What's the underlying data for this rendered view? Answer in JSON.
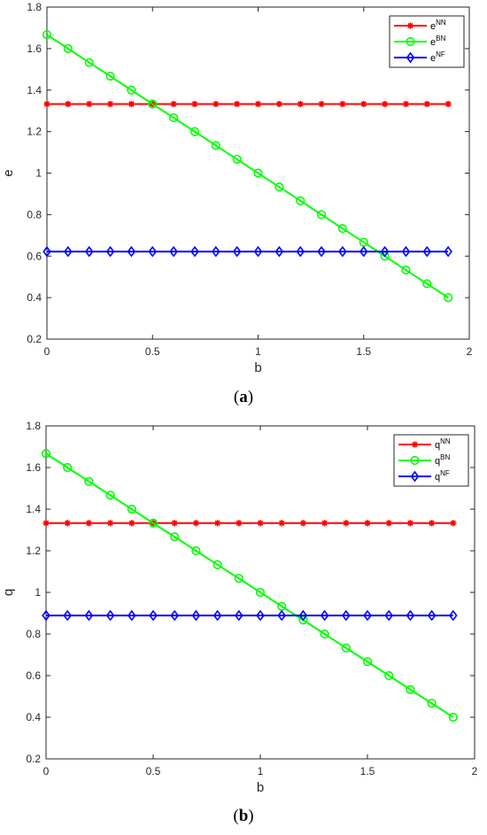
{
  "chart_data": [
    {
      "type": "line",
      "caption_prefix": "(",
      "caption_letter": "a",
      "caption_suffix": ")",
      "xlabel": "b",
      "ylabel": "e",
      "xlim": [
        0,
        2
      ],
      "ylim": [
        0.2,
        1.8
      ],
      "xticks": [
        0,
        0.5,
        1,
        1.5,
        2
      ],
      "xtick_labels": [
        "0",
        "0.5",
        "1",
        "1.5",
        "2"
      ],
      "yticks": [
        0.2,
        0.4,
        0.6,
        0.8,
        1,
        1.2,
        1.4,
        1.6,
        1.8
      ],
      "ytick_labels": [
        "0.2",
        "0.4",
        "0.6",
        "0.8",
        "1",
        "1.2",
        "1.4",
        "1.6",
        "1.8"
      ],
      "grid": false,
      "legend_position": "top-right",
      "x": [
        0,
        0.1,
        0.2,
        0.3,
        0.4,
        0.5,
        0.6,
        0.7,
        0.8,
        0.9,
        1.0,
        1.1,
        1.2,
        1.3,
        1.4,
        1.5,
        1.6,
        1.7,
        1.8,
        1.9
      ],
      "series": [
        {
          "base": "e",
          "sup": "NN",
          "color": "#ff0000",
          "marker": "star",
          "values": [
            1.333,
            1.333,
            1.333,
            1.333,
            1.333,
            1.333,
            1.333,
            1.333,
            1.333,
            1.333,
            1.333,
            1.333,
            1.333,
            1.333,
            1.333,
            1.333,
            1.333,
            1.333,
            1.333,
            1.333
          ]
        },
        {
          "base": "e",
          "sup": "BN",
          "color": "#00ff00",
          "marker": "circle",
          "values": [
            1.667,
            1.6,
            1.533,
            1.467,
            1.4,
            1.333,
            1.267,
            1.2,
            1.133,
            1.067,
            1.0,
            0.933,
            0.867,
            0.8,
            0.733,
            0.667,
            0.6,
            0.533,
            0.467,
            0.4
          ]
        },
        {
          "base": "e",
          "sup": "NF",
          "color": "#0000ff",
          "marker": "diamond",
          "values": [
            0.622,
            0.622,
            0.622,
            0.622,
            0.622,
            0.622,
            0.622,
            0.622,
            0.622,
            0.622,
            0.622,
            0.622,
            0.622,
            0.622,
            0.622,
            0.622,
            0.622,
            0.622,
            0.622,
            0.622
          ]
        }
      ]
    },
    {
      "type": "line",
      "caption_prefix": "(",
      "caption_letter": "b",
      "caption_suffix": ")",
      "xlabel": "b",
      "ylabel": "q",
      "xlim": [
        0,
        2
      ],
      "ylim": [
        0.2,
        1.8
      ],
      "xticks": [
        0,
        0.5,
        1,
        1.5,
        2
      ],
      "xtick_labels": [
        "0",
        "0.5",
        "1",
        "1.5",
        "2"
      ],
      "yticks": [
        0.2,
        0.4,
        0.6,
        0.8,
        1,
        1.2,
        1.4,
        1.6,
        1.8
      ],
      "ytick_labels": [
        "0.2",
        "0.4",
        "0.6",
        "0.8",
        "1",
        "1.2",
        "1.4",
        "1.6",
        "1.8"
      ],
      "grid": false,
      "legend_position": "top-right",
      "x": [
        0,
        0.1,
        0.2,
        0.3,
        0.4,
        0.5,
        0.6,
        0.7,
        0.8,
        0.9,
        1.0,
        1.1,
        1.2,
        1.3,
        1.4,
        1.5,
        1.6,
        1.7,
        1.8,
        1.9
      ],
      "series": [
        {
          "base": "q",
          "sup": "NN",
          "color": "#ff0000",
          "marker": "star",
          "values": [
            1.333,
            1.333,
            1.333,
            1.333,
            1.333,
            1.333,
            1.333,
            1.333,
            1.333,
            1.333,
            1.333,
            1.333,
            1.333,
            1.333,
            1.333,
            1.333,
            1.333,
            1.333,
            1.333,
            1.333
          ]
        },
        {
          "base": "q",
          "sup": "BN",
          "color": "#00ff00",
          "marker": "circle",
          "values": [
            1.667,
            1.6,
            1.533,
            1.467,
            1.4,
            1.333,
            1.267,
            1.2,
            1.133,
            1.067,
            1.0,
            0.933,
            0.867,
            0.8,
            0.733,
            0.667,
            0.6,
            0.533,
            0.467,
            0.4
          ]
        },
        {
          "base": "q",
          "sup": "NF",
          "color": "#0000ff",
          "marker": "diamond",
          "values": [
            0.889,
            0.889,
            0.889,
            0.889,
            0.889,
            0.889,
            0.889,
            0.889,
            0.889,
            0.889,
            0.889,
            0.889,
            0.889,
            0.889,
            0.889,
            0.889,
            0.889,
            0.889,
            0.889,
            0.889
          ]
        }
      ]
    }
  ]
}
